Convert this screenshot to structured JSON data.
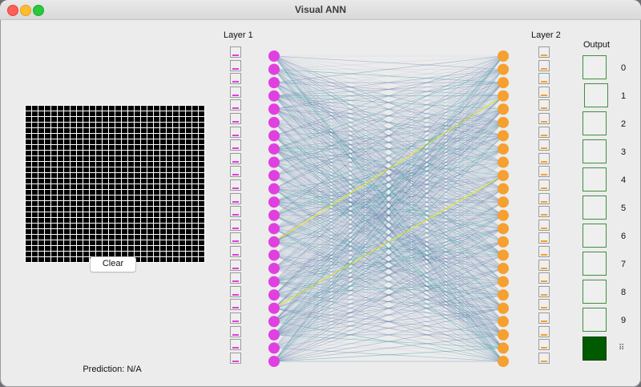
{
  "window": {
    "title": "Visual ANN"
  },
  "input": {
    "rows": 28,
    "cols": 28,
    "clear_label": "Clear",
    "prediction_text": "Prediction: N/A"
  },
  "layer1": {
    "title": "Layer 1",
    "count": 24,
    "color": "#e040e0"
  },
  "layer2": {
    "title": "Layer 2",
    "count": 24,
    "color": "#f5a030"
  },
  "output": {
    "title": "Output",
    "labels": [
      "0",
      "1",
      "2",
      "3",
      "4",
      "5",
      "6",
      "7",
      "8",
      "9"
    ],
    "highlight_color": "#005a00"
  },
  "colors": {
    "weak_weight": "#8fa8c8",
    "mid_weight": "#3a5f9a",
    "teal_weight": "#2aa0a0",
    "strong_weight": "#e6e62a"
  }
}
